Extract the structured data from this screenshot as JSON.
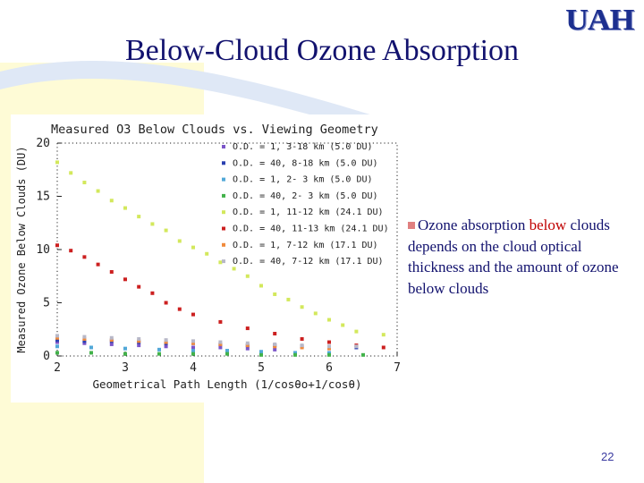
{
  "slide": {
    "title": "Below-Cloud Ozone Absorption",
    "logo_text": "UAH",
    "bullet": {
      "part1": "Ozone absorption ",
      "highlight": "below",
      "part2": " clouds depends on the cloud optical thickness and the amount of ozone below clouds"
    },
    "page_number": "22"
  },
  "chart_data": {
    "type": "scatter",
    "title": "Measured O3 Below Clouds vs. Viewing Geometry",
    "xlabel": "Geometrical Path Length (1/cosθo+1/cosθ)",
    "ylabel": "Measured Ozone Below Clouds (DU)",
    "xlim": [
      2,
      7
    ],
    "ylim": [
      0,
      20
    ],
    "xticks": [
      "2",
      "3",
      "4",
      "5",
      "6",
      "7"
    ],
    "yticks": [
      "0",
      "5",
      "10",
      "15",
      "20"
    ],
    "legend_position": "top-right",
    "series": [
      {
        "name": "O.D. = 1,  3-18 km (5.0 DU)",
        "color": "#7b55c8",
        "x": [
          2.0,
          2.4,
          2.8,
          3.2,
          3.6,
          4.0,
          4.4,
          4.8,
          5.2
        ],
        "y": [
          1.3,
          1.2,
          1.1,
          1.0,
          0.9,
          0.8,
          0.8,
          0.7,
          0.6
        ]
      },
      {
        "name": "O.D. = 40,  8-18 km (5.0 DU)",
        "color": "#2a3fb0",
        "x": [
          2.0,
          2.4,
          2.8,
          3.2,
          3.6,
          4.0,
          4.4,
          4.8,
          5.2,
          5.6,
          6.0,
          6.4
        ],
        "y": [
          1.5,
          1.4,
          1.4,
          1.3,
          1.2,
          1.2,
          1.1,
          1.0,
          1.0,
          0.9,
          0.8,
          0.8
        ]
      },
      {
        "name": "O.D. = 1,  2- 3 km (5.0 DU)",
        "color": "#52a8d8",
        "x": [
          2.0,
          2.5,
          3.0,
          3.5,
          4.0,
          4.5,
          5.0,
          5.5,
          6.0
        ],
        "y": [
          0.9,
          0.8,
          0.7,
          0.6,
          0.5,
          0.5,
          0.4,
          0.3,
          0.3
        ]
      },
      {
        "name": "O.D. = 40,  2- 3 km (5.0 DU)",
        "color": "#42b24a",
        "x": [
          2.0,
          2.5,
          3.0,
          3.5,
          4.0,
          4.5,
          5.0,
          5.5,
          6.0,
          6.5
        ],
        "y": [
          0.3,
          0.3,
          0.2,
          0.2,
          0.2,
          0.2,
          0.1,
          0.1,
          0.1,
          0.1
        ]
      },
      {
        "name": "O.D. = 1,  11-12 km (24.1 DU)",
        "color": "#d3e85c",
        "x": [
          2.0,
          2.2,
          2.4,
          2.6,
          2.8,
          3.0,
          3.2,
          3.4,
          3.6,
          3.8,
          4.0,
          4.2,
          4.4,
          4.6,
          4.8,
          5.0,
          5.2,
          5.4,
          5.6,
          5.8,
          6.0,
          6.2,
          6.4,
          6.8
        ],
        "y": [
          18.2,
          17.2,
          16.3,
          15.5,
          14.6,
          13.9,
          13.1,
          12.4,
          11.8,
          10.8,
          10.2,
          9.6,
          8.8,
          8.2,
          7.5,
          6.6,
          5.8,
          5.3,
          4.6,
          4.0,
          3.4,
          2.9,
          2.3,
          2.0
        ]
      },
      {
        "name": "O.D. = 40,  11-13 km (24.1 DU)",
        "color": "#cc2020",
        "x": [
          2.0,
          2.2,
          2.4,
          2.6,
          2.8,
          3.0,
          3.2,
          3.4,
          3.6,
          3.8,
          4.0,
          4.4,
          4.8,
          5.2,
          5.6,
          6.0,
          6.4,
          6.8
        ],
        "y": [
          10.4,
          9.9,
          9.3,
          8.6,
          7.9,
          7.2,
          6.5,
          5.9,
          5.0,
          4.4,
          3.9,
          3.2,
          2.6,
          2.1,
          1.6,
          1.3,
          1.0,
          0.8
        ]
      },
      {
        "name": "O.D. = 1,  7-12 km (17.1 DU)",
        "color": "#f08a3c",
        "x": [
          2.0,
          2.4,
          2.8,
          3.2,
          3.6,
          4.0,
          4.4,
          4.8,
          5.2,
          5.6,
          6.0
        ],
        "y": [
          1.7,
          1.6,
          1.5,
          1.4,
          1.3,
          1.2,
          1.1,
          1.0,
          0.9,
          0.8,
          0.7
        ]
      },
      {
        "name": "O.D. = 40,  7-12 km (17.1 DU)",
        "color": "#b8b8c8",
        "x": [
          2.0,
          2.4,
          2.8,
          3.2,
          3.6,
          4.0,
          4.4,
          4.8,
          5.2,
          5.6,
          6.0,
          6.4
        ],
        "y": [
          1.9,
          1.8,
          1.7,
          1.6,
          1.5,
          1.4,
          1.3,
          1.2,
          1.1,
          1.0,
          0.9,
          0.9
        ]
      }
    ]
  }
}
